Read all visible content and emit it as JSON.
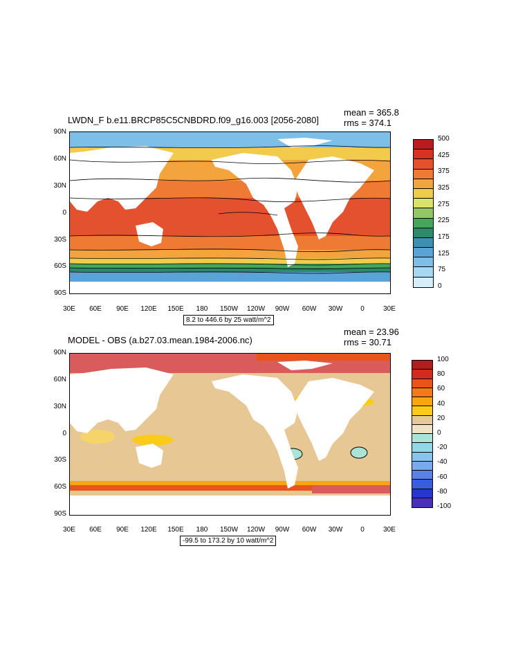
{
  "panels": [
    {
      "title": "LWDN_F b.e11.BRCP85C5CNBDRD.f09_g16.003 [2056-2080]",
      "mean": "mean = 365.8",
      "rms": "rms = 374.1",
      "range_text": "8.2 to 446.6 by 25 watt/m^2",
      "colorbar": {
        "labels": [
          "500",
          "425",
          "375",
          "325",
          "275",
          "225",
          "175",
          "125",
          "75",
          "0"
        ],
        "colors": [
          "#b81c1c",
          "#d63323",
          "#e4512e",
          "#ee7a34",
          "#f4a43d",
          "#f2cb4c",
          "#d9e36a",
          "#93c766",
          "#45a55a",
          "#2c8a6b",
          "#3f8fb1",
          "#5aa3d7",
          "#7ebfe7",
          "#a7d8f1",
          "#d4eefb"
        ]
      }
    },
    {
      "title": "MODEL - OBS (a.b27.03.mean.1984-2006.nc)",
      "mean": "mean = 23.96",
      "rms": "rms = 30.71",
      "range_text": "-99.5 to 173.2 by 10 watt/m^2",
      "colorbar": {
        "labels": [
          "100",
          "80",
          "60",
          "40",
          "20",
          "0",
          "-20",
          "-40",
          "-60",
          "-80",
          "-100"
        ],
        "colors": [
          "#b11d1d",
          "#d22a1f",
          "#e8541a",
          "#f27c13",
          "#f7a60f",
          "#fbcb1a",
          "#e7c894",
          "#efe3c3",
          "#a9e4d6",
          "#8fd8e7",
          "#86c4ee",
          "#7ba8ee",
          "#5a82e6",
          "#3a5ddb",
          "#2438cf",
          "#4a2fbd"
        ]
      }
    }
  ],
  "axes": {
    "y_labels": [
      "90N",
      "60N",
      "30N",
      "0",
      "30S",
      "60S",
      "90S"
    ],
    "x_labels": [
      "30E",
      "60E",
      "90E",
      "120E",
      "150E",
      "180",
      "150W",
      "120W",
      "90W",
      "60W",
      "30W",
      "0",
      "30E"
    ]
  }
}
